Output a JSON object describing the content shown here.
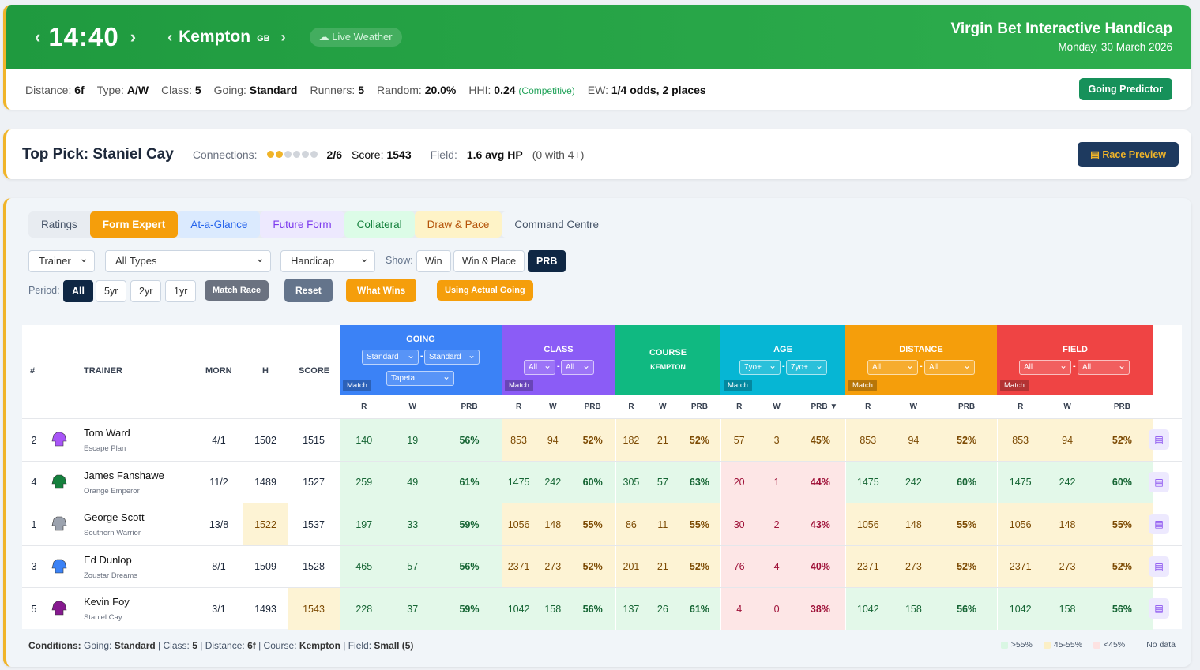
{
  "header": {
    "time": "14:40",
    "course": "Kempton",
    "country": "GB",
    "weather_label": "Live Weather",
    "race_name": "Virgin Bet Interactive Handicap",
    "date": "Monday, 30 March 2026",
    "info": [
      {
        "label": "Distance:",
        "value": "6f"
      },
      {
        "label": "Type:",
        "value": "A/W"
      },
      {
        "label": "Class:",
        "value": "5"
      },
      {
        "label": "Going:",
        "value": "Standard"
      },
      {
        "label": "Runners:",
        "value": "5"
      },
      {
        "label": "Random:",
        "value": "20.0%"
      },
      {
        "label": "HHI:",
        "value": "0.24"
      },
      {
        "label": "EW:",
        "value": "1/4 odds, 2 places"
      }
    ],
    "hhi_note": "(Competitive)",
    "going_predictor": "Going Predictor"
  },
  "top_pick": {
    "title": "Top Pick: Staniel Cay",
    "connections_label": "Connections:",
    "connections_value": "2/6",
    "connections_filled": 2,
    "connections_total": 6,
    "score_label": "Score:",
    "score_value": "1543",
    "field_label": "Field:",
    "field_value": "1.6 avg HP",
    "field_note": "(0 with 4+)",
    "race_preview": "Race Preview"
  },
  "tabs": [
    "Ratings",
    "Form Expert",
    "At-a-Glance",
    "Future Form",
    "Collateral",
    "Draw & Pace",
    "Command Centre"
  ],
  "filters": {
    "trainer": "Trainer",
    "types": "All Types",
    "handicap": "Handicap",
    "show_label": "Show:",
    "show": [
      "Win",
      "Win & Place",
      "PRB"
    ],
    "period_label": "Period:",
    "period": [
      "All",
      "5yr",
      "2yr",
      "1yr"
    ],
    "match_race": "Match Race",
    "reset": "Reset",
    "what_wins": "What Wins",
    "using_actual_going": "Using Actual Going"
  },
  "table": {
    "headers": {
      "num": "#",
      "trainer": "TRAINER",
      "morn": "MORN",
      "h": "H",
      "score": "SCORE"
    },
    "groups": [
      {
        "name": "GOING",
        "selects": [
          "Standard",
          "Standard",
          "Tapeta"
        ],
        "match": "Match",
        "color": "#3b82f6"
      },
      {
        "name": "CLASS",
        "selects": [
          "All",
          "All"
        ],
        "match": "Match",
        "color": "#8b5cf6"
      },
      {
        "name": "COURSE",
        "sub": "KEMPTON",
        "color": "#10b981"
      },
      {
        "name": "AGE",
        "selects": [
          "7yo+",
          "7yo+"
        ],
        "match": "Match",
        "color": "#06b6d4"
      },
      {
        "name": "DISTANCE",
        "selects": [
          "All",
          "All"
        ],
        "match": "Match",
        "color": "#f59e0b"
      },
      {
        "name": "FIELD",
        "selects": [
          "All",
          "All"
        ],
        "match": "Match",
        "color": "#ef4444"
      }
    ],
    "subcols": [
      "R",
      "W",
      "PRB"
    ],
    "sort_col": "PRB ▼",
    "rows": [
      {
        "num": "2",
        "trainer": "Tom Ward",
        "horse": "Escape Plan",
        "morn": "4/1",
        "h": "1502",
        "score": "1515",
        "going": [
          "140",
          "19",
          "56%"
        ],
        "class": [
          "853",
          "94",
          "52%"
        ],
        "course": [
          "182",
          "21",
          "52%"
        ],
        "age": [
          "57",
          "3",
          "45%"
        ],
        "distance": [
          "853",
          "94",
          "52%"
        ],
        "field": [
          "853",
          "94",
          "52%"
        ]
      },
      {
        "num": "4",
        "trainer": "James Fanshawe",
        "horse": "Orange Emperor",
        "morn": "11/2",
        "h": "1489",
        "score": "1527",
        "going": [
          "259",
          "49",
          "61%"
        ],
        "class": [
          "1475",
          "242",
          "60%"
        ],
        "course": [
          "305",
          "57",
          "63%"
        ],
        "age": [
          "20",
          "1",
          "44%"
        ],
        "distance": [
          "1475",
          "242",
          "60%"
        ],
        "field": [
          "1475",
          "242",
          "60%"
        ]
      },
      {
        "num": "1",
        "trainer": "George Scott",
        "horse": "Southern Warrior",
        "morn": "13/8",
        "h": "1522",
        "score": "1537",
        "going": [
          "197",
          "33",
          "59%"
        ],
        "class": [
          "1056",
          "148",
          "55%"
        ],
        "course": [
          "86",
          "11",
          "55%"
        ],
        "age": [
          "30",
          "2",
          "43%"
        ],
        "distance": [
          "1056",
          "148",
          "55%"
        ],
        "field": [
          "1056",
          "148",
          "55%"
        ]
      },
      {
        "num": "3",
        "trainer": "Ed Dunlop",
        "horse": "Zoustar Dreams",
        "morn": "8/1",
        "h": "1509",
        "score": "1528",
        "going": [
          "465",
          "57",
          "56%"
        ],
        "class": [
          "2371",
          "273",
          "52%"
        ],
        "course": [
          "201",
          "21",
          "52%"
        ],
        "age": [
          "76",
          "4",
          "40%"
        ],
        "distance": [
          "2371",
          "273",
          "52%"
        ],
        "field": [
          "2371",
          "273",
          "52%"
        ]
      },
      {
        "num": "5",
        "trainer": "Kevin Foy",
        "horse": "Staniel Cay",
        "morn": "3/1",
        "h": "1493",
        "score": "1543",
        "going": [
          "228",
          "37",
          "59%"
        ],
        "class": [
          "1042",
          "158",
          "56%"
        ],
        "course": [
          "137",
          "26",
          "61%"
        ],
        "age": [
          "4",
          "0",
          "38%"
        ],
        "distance": [
          "1042",
          "158",
          "56%"
        ],
        "field": [
          "1042",
          "158",
          "56%"
        ]
      }
    ]
  },
  "conditions": {
    "label": "Conditions:",
    "going_label": "Going:",
    "going": "Standard",
    "class_label": "Class:",
    "class": "5",
    "distance_label": "Distance:",
    "distance": "6f",
    "course_label": "Course:",
    "course": "Kempton",
    "field_label": "Field:",
    "field": "Small (5)"
  },
  "legend": [
    ">55%",
    "45-55%",
    "<45%",
    "No data"
  ]
}
